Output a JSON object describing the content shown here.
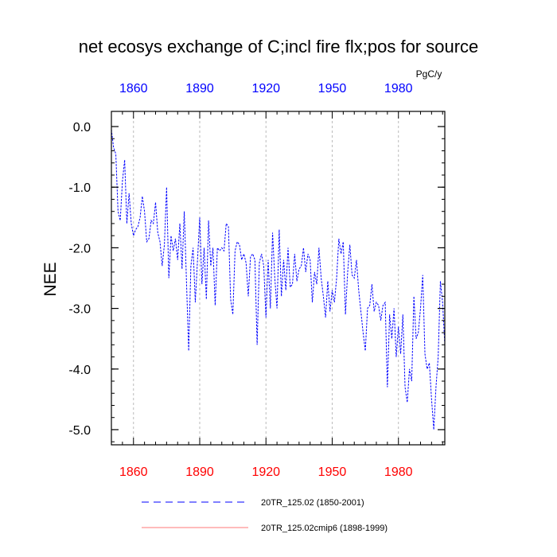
{
  "chart_data": {
    "type": "line",
    "title": "net ecosys exchange of C;incl fire flx;pos for source",
    "units": "PgC/y",
    "ylabel": "NEE",
    "xlim": [
      1850,
      2001
    ],
    "ylim": [
      -5.25,
      0.25
    ],
    "x_ticks": [
      "1860",
      "1890",
      "1920",
      "1950",
      "1980"
    ],
    "x_tick_values": [
      1860,
      1890,
      1920,
      1950,
      1980
    ],
    "y_ticks": [
      "0.0",
      "-1.0",
      "-2.0",
      "-3.0",
      "-4.0",
      "-5.0"
    ],
    "y_tick_values": [
      0,
      -1,
      -2,
      -3,
      -4,
      -5
    ],
    "grid": "vertical dashed at x ticks",
    "series": [
      {
        "name": "20TR_125.02 (1850-2001)",
        "color": "#0000ff",
        "style": "dashed",
        "x": [
          1850,
          1851,
          1852,
          1853,
          1854,
          1855,
          1856,
          1857,
          1858,
          1859,
          1860,
          1861,
          1862,
          1863,
          1864,
          1865,
          1866,
          1867,
          1868,
          1869,
          1870,
          1871,
          1872,
          1873,
          1874,
          1875,
          1876,
          1877,
          1878,
          1879,
          1880,
          1881,
          1882,
          1883,
          1884,
          1885,
          1886,
          1887,
          1888,
          1889,
          1890,
          1891,
          1892,
          1893,
          1894,
          1895,
          1896,
          1897,
          1898,
          1899,
          1900,
          1901,
          1902,
          1903,
          1904,
          1905,
          1906,
          1907,
          1908,
          1909,
          1910,
          1911,
          1912,
          1913,
          1914,
          1915,
          1916,
          1917,
          1918,
          1919,
          1920,
          1921,
          1922,
          1923,
          1924,
          1925,
          1926,
          1927,
          1928,
          1929,
          1930,
          1931,
          1932,
          1933,
          1934,
          1935,
          1936,
          1937,
          1938,
          1939,
          1940,
          1941,
          1942,
          1943,
          1944,
          1945,
          1946,
          1947,
          1948,
          1949,
          1950,
          1951,
          1952,
          1953,
          1954,
          1955,
          1956,
          1957,
          1958,
          1959,
          1960,
          1961,
          1962,
          1963,
          1964,
          1965,
          1966,
          1967,
          1968,
          1969,
          1970,
          1971,
          1972,
          1973,
          1974,
          1975,
          1976,
          1977,
          1978,
          1979,
          1980,
          1981,
          1982,
          1983,
          1984,
          1985,
          1986,
          1987,
          1988,
          1989,
          1990,
          1991,
          1992,
          1993,
          1994,
          1995,
          1996,
          1997,
          1998,
          1999,
          2000,
          2001
        ],
        "values": [
          -0.05,
          -0.35,
          -0.45,
          -1.4,
          -1.55,
          -0.9,
          -0.55,
          -1.6,
          -1.1,
          -1.6,
          -1.8,
          -1.7,
          -1.65,
          -1.5,
          -1.15,
          -1.4,
          -1.9,
          -1.85,
          -1.55,
          -1.6,
          -1.25,
          -1.75,
          -1.9,
          -2.3,
          -1.95,
          -1.0,
          -2.5,
          -1.8,
          -2.05,
          -1.85,
          -2.2,
          -1.6,
          -2.35,
          -1.4,
          -2.55,
          -3.7,
          -2.3,
          -2.0,
          -2.9,
          -2.2,
          -1.5,
          -2.6,
          -2.0,
          -2.85,
          -1.55,
          -2.3,
          -2.0,
          -2.95,
          -2.0,
          -2.05,
          -2.0,
          -2.05,
          -1.6,
          -1.65,
          -2.85,
          -3.1,
          -2.05,
          -1.9,
          -1.95,
          -2.2,
          -2.1,
          -2.25,
          -2.8,
          -2.15,
          -2.1,
          -2.2,
          -3.6,
          -2.25,
          -2.1,
          -2.3,
          -3.15,
          -2.2,
          -3.0,
          -1.75,
          -2.5,
          -3.0,
          -1.7,
          -2.8,
          -2.2,
          -2.7,
          -2.0,
          -2.65,
          -2.6,
          -2.1,
          -2.55,
          -2.35,
          -2.3,
          -2.0,
          -2.4,
          -2.1,
          -2.2,
          -2.9,
          -2.4,
          -2.6,
          -2.0,
          -2.5,
          -2.8,
          -3.15,
          -2.55,
          -3.05,
          -2.7,
          -2.9,
          -2.5,
          -1.85,
          -2.1,
          -1.9,
          -3.1,
          -2.4,
          -1.95,
          -2.45,
          -2.5,
          -2.2,
          -2.7,
          -3.05,
          -3.4,
          -3.7,
          -3.0,
          -2.95,
          -2.6,
          -3.05,
          -2.9,
          -2.95,
          -3.2,
          -2.95,
          -2.9,
          -4.3,
          -3.1,
          -3.5,
          -3.0,
          -3.8,
          -3.3,
          -3.75,
          -3.1,
          -4.3,
          -4.55,
          -4.0,
          -4.2,
          -2.8,
          -3.5,
          -3.4,
          -3.0,
          -2.45,
          -3.75,
          -4.0,
          -3.9,
          -4.5,
          -5.0,
          -4.3,
          -3.8,
          -2.55,
          -2.9,
          -3.6
        ]
      },
      {
        "name": "20TR_125.02cmip6 (1898-1999)",
        "color": "#ff0000",
        "style": "solid",
        "x": [],
        "values": []
      }
    ]
  }
}
